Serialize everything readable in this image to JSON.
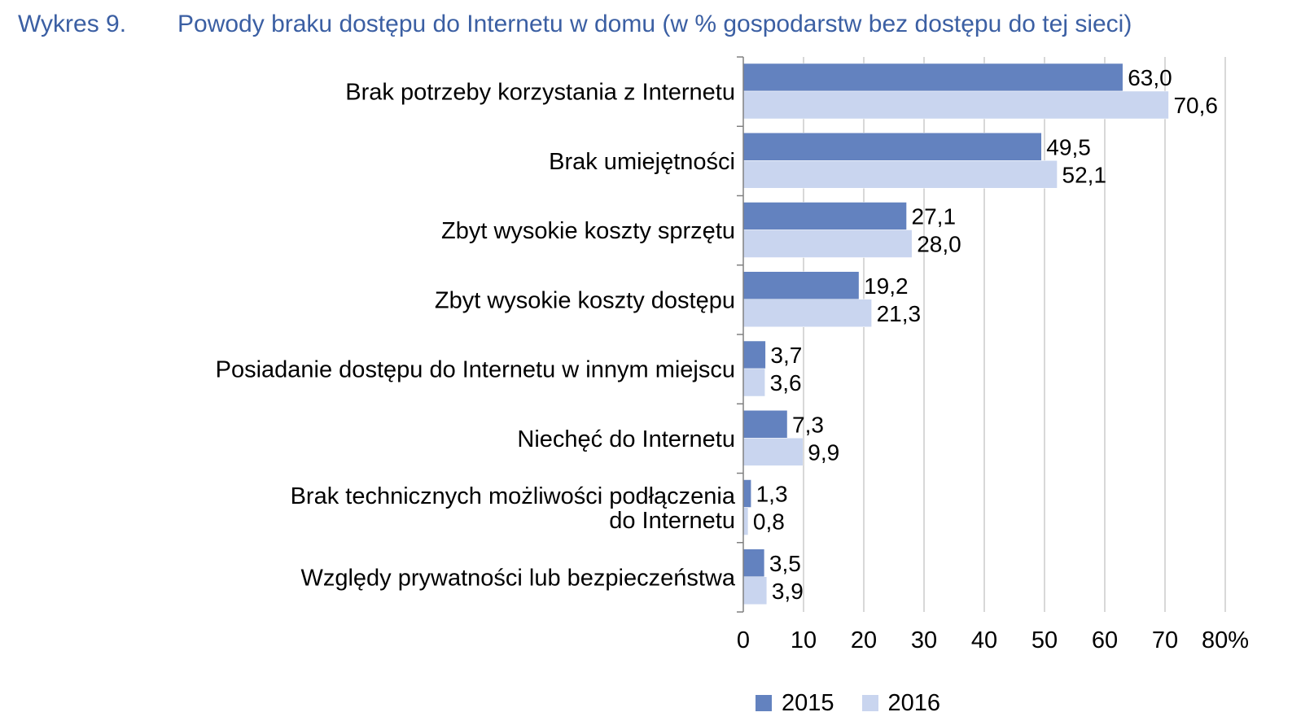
{
  "figure": {
    "number": "Wykres 9.",
    "title": "Powody braku dostępu do Internetu w domu (w % gospodarstw bez dostępu do tej sieci)"
  },
  "chart_data": {
    "type": "bar",
    "orientation": "horizontal",
    "categories": [
      [
        "Brak potrzeby korzystania z Internetu"
      ],
      [
        "Brak umiejętności"
      ],
      [
        "Zbyt wysokie koszty sprzętu"
      ],
      [
        "Zbyt wysokie koszty dostępu"
      ],
      [
        "Posiadanie dostępu do Internetu w innym miejscu"
      ],
      [
        "Niechęć do Internetu"
      ],
      [
        "Brak technicznych możliwości podłączenia",
        "do Internetu"
      ],
      [
        "Względy prywatności lub bezpieczeństwa"
      ]
    ],
    "series": [
      {
        "name": "2015",
        "color": "#6382bf",
        "values": [
          63.0,
          49.5,
          27.1,
          19.2,
          3.7,
          7.3,
          1.3,
          3.5
        ],
        "labels": [
          "63,0",
          "49,5",
          "27,1",
          "19,2",
          "3,7",
          "7,3",
          "1,3",
          "3,5"
        ]
      },
      {
        "name": "2016",
        "color": "#c9d5ef",
        "values": [
          70.6,
          52.1,
          28.0,
          21.3,
          3.6,
          9.9,
          0.8,
          3.9
        ],
        "labels": [
          "70,6",
          "52,1",
          "28,0",
          "21,3",
          "3,6",
          "9,9",
          "0,8",
          "3,9"
        ]
      }
    ],
    "xlim": [
      0,
      80
    ],
    "xticks": [
      "0",
      "10",
      "20",
      "30",
      "40",
      "50",
      "60",
      "70",
      "80%"
    ],
    "grid": true,
    "legend_position": "bottom"
  }
}
